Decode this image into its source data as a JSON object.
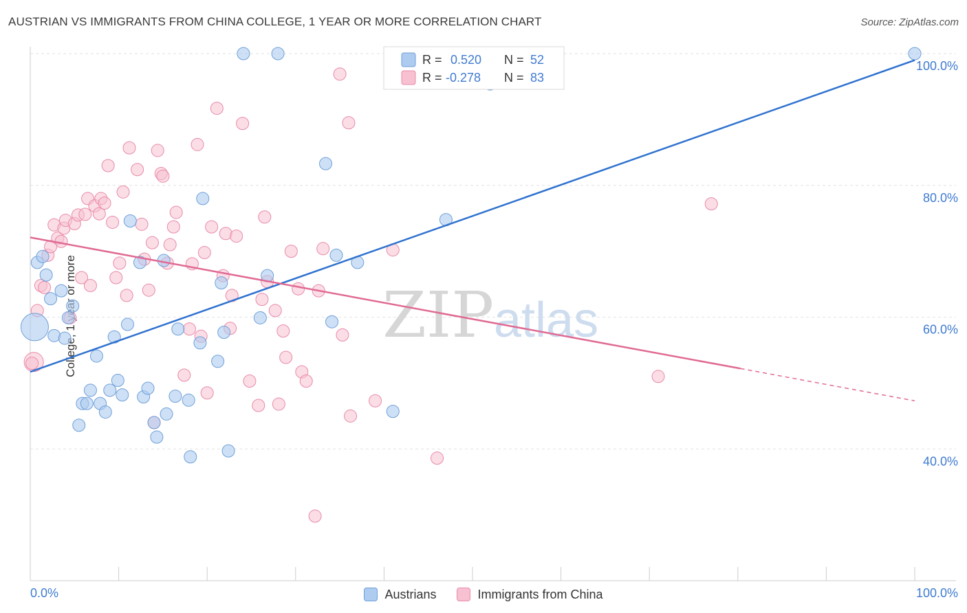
{
  "title": "AUSTRIAN VS IMMIGRANTS FROM CHINA COLLEGE, 1 YEAR OR MORE CORRELATION CHART",
  "source": "Source: ZipAtlas.com",
  "watermark": {
    "zip": "ZIP",
    "atlas": "atlas"
  },
  "colors": {
    "blue_fill": "#aecbf0",
    "blue_stroke": "#6e9fd8",
    "blue_line": "#2f72cf",
    "pink_fill": "#f7c1d2",
    "pink_stroke": "#e88aa8",
    "pink_line": "#e06a93",
    "axis_text": "#3f7bd1",
    "grid": "#e2e2e2"
  },
  "legend_box": {
    "rows": [
      {
        "r_label": "R =",
        "r_value": "0.520",
        "n_label": "N =",
        "n_value": "52",
        "series": "blue"
      },
      {
        "r_label": "R =",
        "r_value": "-0.278",
        "n_label": "N =",
        "n_value": "83",
        "series": "pink"
      }
    ]
  },
  "bottom_legend": [
    {
      "label": "Austrians",
      "series": "blue"
    },
    {
      "label": "Immigrants from China",
      "series": "pink"
    }
  ],
  "chart_data": {
    "type": "scatter",
    "title": "AUSTRIAN VS IMMIGRANTS FROM CHINA COLLEGE, 1 YEAR OR MORE CORRELATION CHART",
    "xlabel": "",
    "ylabel": "College, 1 year or more",
    "xlim": [
      0,
      100
    ],
    "ylim": [
      20,
      100
    ],
    "x_tick_labels": [
      "0.0%",
      "100.0%"
    ],
    "y_tick_labels": [
      {
        "value": 40,
        "label": "40.0%"
      },
      {
        "value": 60,
        "label": "60.0%"
      },
      {
        "value": 80,
        "label": "80.0%"
      },
      {
        "value": 100,
        "label": "100.0%"
      }
    ],
    "grid": true,
    "legend_position": "top-center",
    "series": [
      {
        "name": "Austrians",
        "color": "blue",
        "trend": {
          "x": [
            0,
            100
          ],
          "y": [
            51.7,
            99.0
          ]
        },
        "points": [
          [
            0.5,
            58.5
          ],
          [
            0.8,
            68.3
          ],
          [
            1.4,
            69.2
          ],
          [
            1.8,
            66.4
          ],
          [
            2.3,
            62.8
          ],
          [
            2.7,
            57.2
          ],
          [
            3.5,
            64.0
          ],
          [
            3.9,
            56.8
          ],
          [
            4.3,
            59.9
          ],
          [
            4.8,
            61.7
          ],
          [
            5.5,
            43.6
          ],
          [
            5.9,
            46.9
          ],
          [
            6.4,
            46.9
          ],
          [
            6.8,
            48.9
          ],
          [
            7.5,
            54.1
          ],
          [
            7.9,
            46.9
          ],
          [
            8.5,
            45.6
          ],
          [
            9.0,
            48.9
          ],
          [
            9.5,
            57.0
          ],
          [
            9.9,
            50.4
          ],
          [
            10.4,
            48.2
          ],
          [
            11.0,
            58.9
          ],
          [
            11.3,
            74.6
          ],
          [
            12.4,
            68.3
          ],
          [
            12.8,
            47.9
          ],
          [
            13.3,
            49.2
          ],
          [
            14.0,
            44.0
          ],
          [
            14.3,
            41.8
          ],
          [
            15.1,
            68.6
          ],
          [
            15.4,
            45.3
          ],
          [
            16.4,
            48.0
          ],
          [
            16.7,
            58.2
          ],
          [
            17.9,
            47.4
          ],
          [
            18.1,
            38.8
          ],
          [
            19.2,
            56.1
          ],
          [
            19.5,
            78.0
          ],
          [
            21.2,
            53.3
          ],
          [
            21.6,
            65.2
          ],
          [
            21.9,
            57.7
          ],
          [
            22.4,
            39.7
          ],
          [
            24.1,
            100.0
          ],
          [
            26.0,
            59.9
          ],
          [
            26.8,
            66.3
          ],
          [
            28.0,
            100.0
          ],
          [
            33.4,
            83.3
          ],
          [
            34.1,
            59.3
          ],
          [
            34.6,
            69.4
          ],
          [
            37.0,
            68.3
          ],
          [
            41.0,
            45.7
          ],
          [
            47.0,
            74.8
          ],
          [
            52.0,
            95.4
          ],
          [
            100.0,
            100.0
          ]
        ]
      },
      {
        "name": "Immigrants from China",
        "color": "pink",
        "trend_solid": {
          "x": [
            0,
            80.3
          ],
          "y": [
            72.1,
            52.2
          ]
        },
        "trend_dashed": {
          "x": [
            80.3,
            100
          ],
          "y": [
            52.2,
            47.3
          ]
        },
        "points": [
          [
            0.4,
            53.2
          ],
          [
            0.8,
            61.0
          ],
          [
            1.2,
            64.8
          ],
          [
            1.6,
            64.5
          ],
          [
            2.0,
            69.4
          ],
          [
            2.3,
            70.7
          ],
          [
            2.7,
            74.0
          ],
          [
            3.1,
            72.0
          ],
          [
            3.5,
            71.5
          ],
          [
            3.8,
            73.5
          ],
          [
            4.0,
            74.7
          ],
          [
            4.5,
            59.9
          ],
          [
            5.0,
            74.2
          ],
          [
            5.4,
            75.5
          ],
          [
            5.8,
            66.0
          ],
          [
            6.2,
            75.6
          ],
          [
            6.5,
            78.0
          ],
          [
            6.8,
            64.8
          ],
          [
            7.3,
            76.9
          ],
          [
            7.8,
            75.7
          ],
          [
            8.0,
            78.0
          ],
          [
            8.4,
            77.3
          ],
          [
            8.8,
            83.0
          ],
          [
            9.3,
            74.4
          ],
          [
            9.7,
            66.0
          ],
          [
            10.1,
            68.2
          ],
          [
            10.5,
            79.0
          ],
          [
            10.9,
            63.3
          ],
          [
            11.2,
            85.7
          ],
          [
            12.1,
            82.4
          ],
          [
            12.6,
            74.1
          ],
          [
            12.9,
            68.8
          ],
          [
            13.4,
            64.1
          ],
          [
            13.8,
            71.3
          ],
          [
            14.0,
            44.0
          ],
          [
            14.4,
            85.3
          ],
          [
            14.8,
            81.8
          ],
          [
            15.0,
            81.4
          ],
          [
            15.5,
            68.2
          ],
          [
            15.8,
            71.0
          ],
          [
            16.2,
            73.7
          ],
          [
            16.5,
            75.9
          ],
          [
            17.4,
            51.2
          ],
          [
            18.0,
            58.2
          ],
          [
            18.3,
            68.1
          ],
          [
            18.9,
            86.2
          ],
          [
            19.3,
            57.1
          ],
          [
            19.7,
            69.8
          ],
          [
            20.0,
            48.5
          ],
          [
            20.5,
            73.7
          ],
          [
            21.1,
            91.7
          ],
          [
            21.8,
            66.3
          ],
          [
            22.1,
            72.7
          ],
          [
            22.6,
            58.3
          ],
          [
            22.8,
            63.3
          ],
          [
            23.3,
            72.3
          ],
          [
            24.0,
            89.4
          ],
          [
            24.8,
            50.3
          ],
          [
            25.8,
            46.6
          ],
          [
            26.2,
            62.7
          ],
          [
            26.5,
            75.2
          ],
          [
            26.8,
            65.4
          ],
          [
            27.7,
            61.0
          ],
          [
            28.1,
            46.8
          ],
          [
            28.6,
            57.9
          ],
          [
            28.9,
            53.9
          ],
          [
            29.5,
            70.0
          ],
          [
            30.3,
            64.3
          ],
          [
            30.7,
            51.7
          ],
          [
            31.2,
            50.3
          ],
          [
            32.2,
            29.8
          ],
          [
            32.6,
            64.0
          ],
          [
            33.1,
            70.4
          ],
          [
            35.0,
            96.9
          ],
          [
            35.3,
            57.3
          ],
          [
            36.0,
            89.5
          ],
          [
            36.2,
            45.0
          ],
          [
            39.0,
            47.3
          ],
          [
            41.0,
            70.2
          ],
          [
            46.0,
            38.6
          ],
          [
            71.0,
            51.0
          ],
          [
            77.0,
            77.2
          ],
          [
            0.2,
            53.0
          ]
        ]
      }
    ]
  }
}
